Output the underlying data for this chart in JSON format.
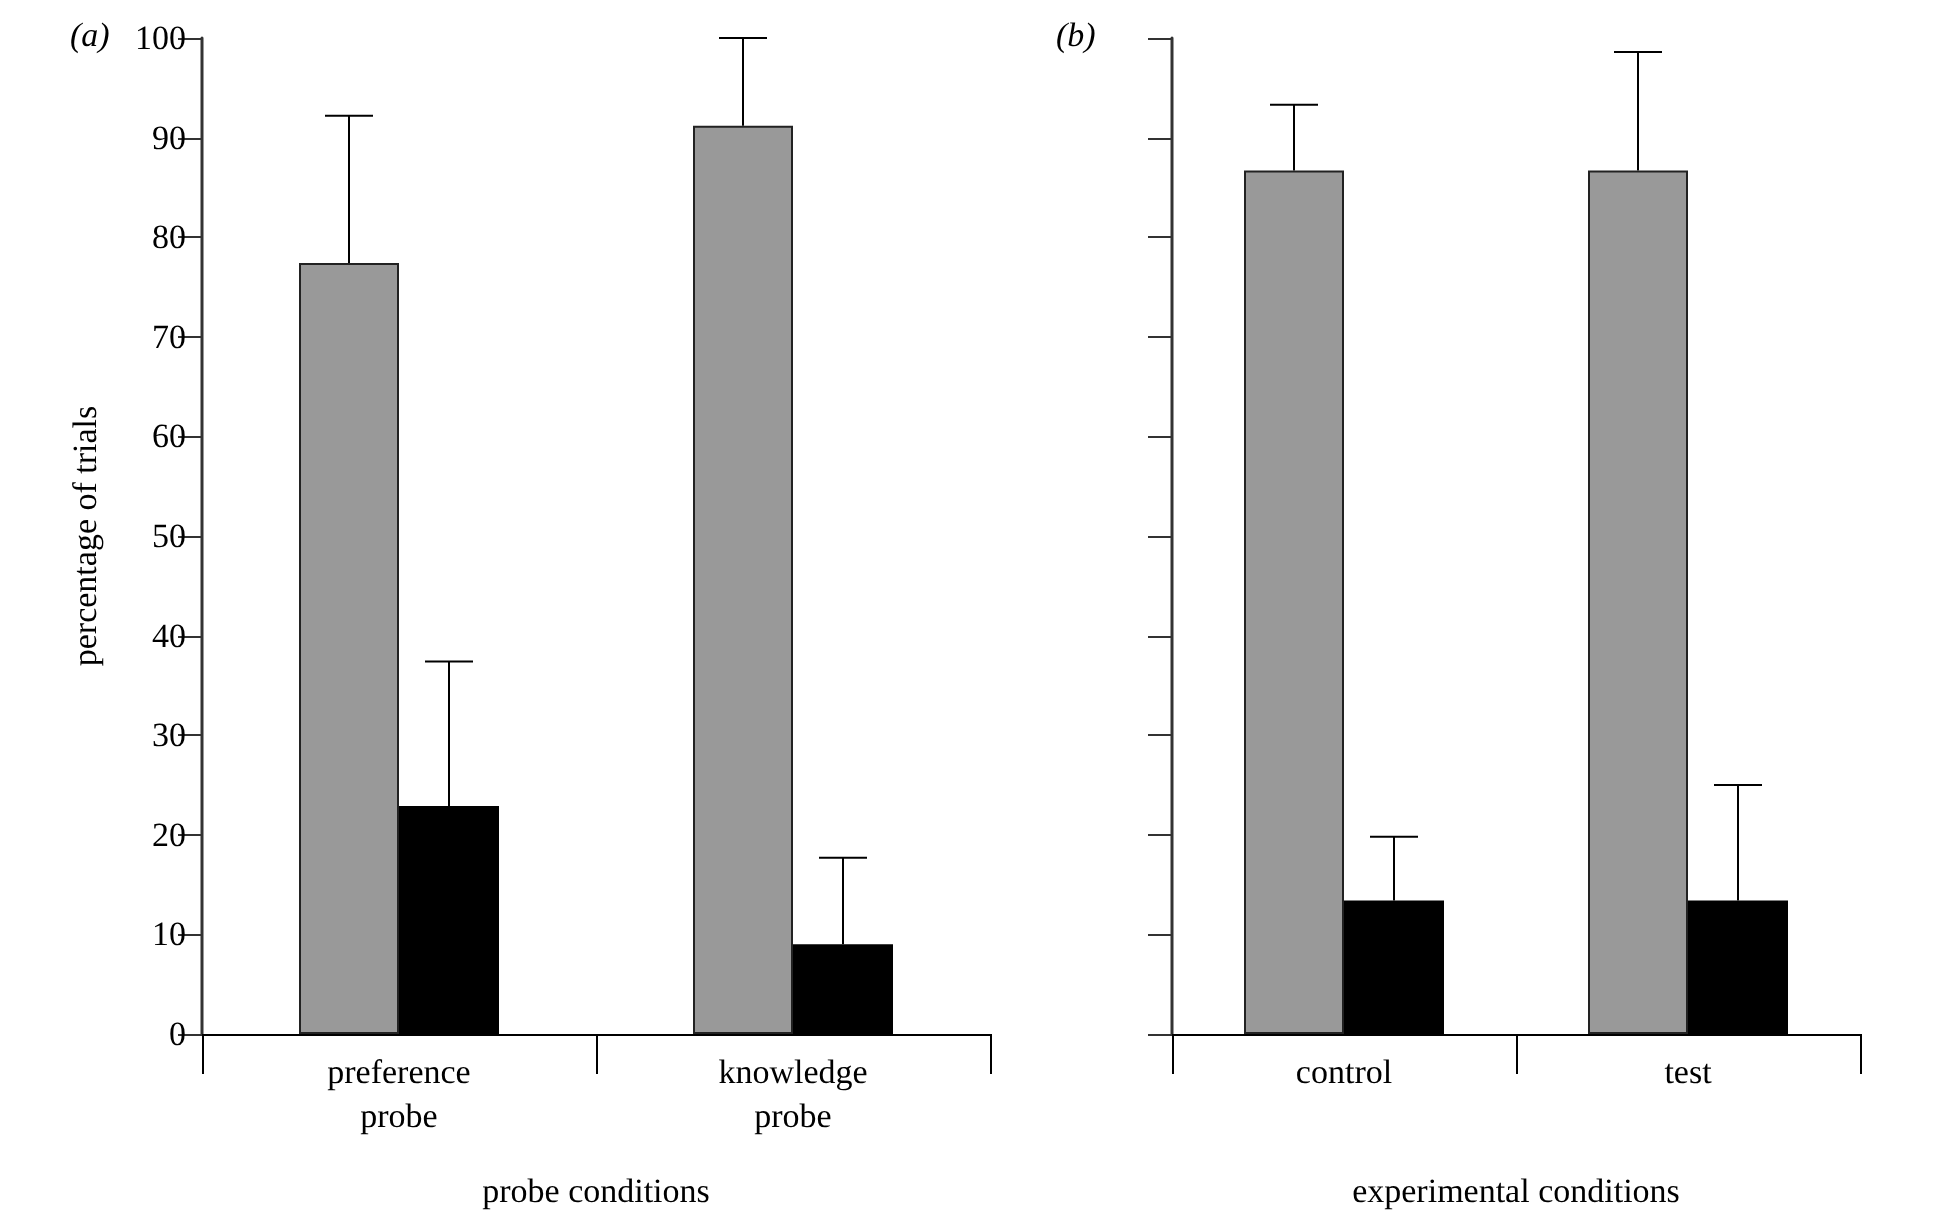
{
  "chart_data": [
    {
      "type": "bar",
      "title": "(a)",
      "xlabel": "probe conditions",
      "ylabel": "percentage of trials",
      "categories": [
        "preference\nprobe",
        "knowledge\nprobe"
      ],
      "series": [
        {
          "color": "#999999",
          "values": [
            77.4,
            91.2
          ],
          "errors": [
            [
              77.4,
              92.2
            ],
            [
              91.2,
              100
            ]
          ]
        },
        {
          "color": "#000000",
          "values": [
            22.9,
            9.0
          ],
          "errors": [
            [
              22.9,
              37.4
            ],
            [
              9.0,
              17.7
            ]
          ]
        }
      ],
      "ylim": [
        0,
        100
      ],
      "yticks": [
        0,
        10,
        20,
        30,
        40,
        50,
        60,
        70,
        80,
        90,
        100
      ],
      "grid": false
    },
    {
      "type": "bar",
      "title": "(b)",
      "xlabel": "experimental conditions",
      "categories": [
        "control",
        "test"
      ],
      "series": [
        {
          "color": "#999999",
          "values": [
            86.7,
            86.7
          ],
          "errors": [
            [
              86.7,
              93.3
            ],
            [
              86.7,
              98.6
            ]
          ]
        },
        {
          "color": "#000000",
          "values": [
            13.4,
            13.4
          ],
          "errors": [
            [
              13.4,
              19.8
            ],
            [
              13.4,
              25.0
            ]
          ]
        }
      ],
      "ylim": [
        0,
        100
      ],
      "yticks": [
        0,
        10,
        20,
        30,
        40,
        50,
        60,
        70,
        80,
        90,
        100
      ],
      "grid": false,
      "tick_labels": "x"
    }
  ]
}
